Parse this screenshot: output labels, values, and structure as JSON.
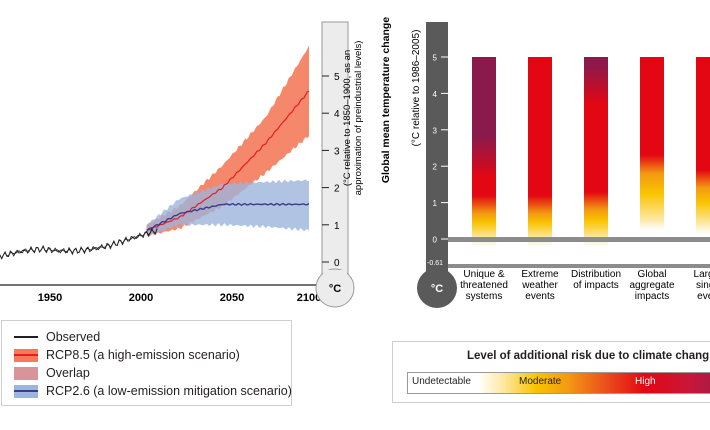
{
  "left_chart": {
    "ylabel_line1": "(°C relative to 1850–1900, as an",
    "ylabel_line2": "approximation of preindustrial levels)",
    "unit": "°C",
    "xticks": [
      "1950",
      "2000",
      "2050",
      "2100"
    ],
    "yticks": [
      "0",
      "1",
      "2",
      "3",
      "4",
      "5"
    ]
  },
  "legend": {
    "items": [
      {
        "label": "Observed",
        "color": "#231f20",
        "kind": "line"
      },
      {
        "label": "RCP8.5 (a high-emission scenario)",
        "color": "#f47a5a",
        "line": "#e31e24",
        "kind": "patch"
      },
      {
        "label": "Overlap",
        "color": "#d9949a",
        "kind": "patch"
      },
      {
        "label": "RCP2.6 (a low-emission mitigation scenario)",
        "color": "#9db4dc",
        "line": "#3b3b8c",
        "kind": "patch"
      }
    ]
  },
  "right_chart": {
    "ylabel_main": "Global mean temperature change",
    "ylabel_sub": "(°C relative to 1986–2005)",
    "unit": "°C",
    "yticks": [
      "0",
      "1",
      "2",
      "3",
      "4",
      "5"
    ],
    "ymin_label": "-0.61",
    "categories": [
      [
        "Unique &",
        "threatened",
        "systems"
      ],
      [
        "Extreme",
        "weather",
        "events"
      ],
      [
        "Distribution",
        "of impacts"
      ],
      [
        "Global",
        "aggregate",
        "impacts"
      ],
      [
        "Large-",
        "singu",
        "even"
      ]
    ]
  },
  "risk_scale": {
    "title": "Level of additional risk due to climate chang",
    "labels": [
      "Undetectable",
      "Moderate",
      "High"
    ]
  },
  "colors": {
    "rcp85_band": "#f47a5a",
    "rcp85_line": "#e31e24",
    "overlap": "#d9949a",
    "rcp26_band": "#9db4dc",
    "rcp26_line": "#3b3b8c",
    "thermometer": "#5a5a5a",
    "moderate": "#f9c400",
    "high": "#e30613",
    "very_high": "#8b1a4c"
  },
  "chart_data": [
    {
      "type": "line",
      "title": "",
      "xlabel": "",
      "ylabel": "(°C relative to 1850–1900, as an approximation of preindustrial levels)",
      "xlim": [
        1915,
        2100
      ],
      "ylim": [
        0,
        5.9
      ],
      "series": [
        {
          "name": "Observed",
          "x": [
            1915,
            1925,
            1935,
            1945,
            1955,
            1965,
            1975,
            1985,
            1995,
            2005,
            2012
          ],
          "y": [
            0.1,
            0.2,
            0.3,
            0.35,
            0.3,
            0.3,
            0.35,
            0.45,
            0.6,
            0.75,
            0.85
          ]
        },
        {
          "name": "RCP8.5 (a high-emission scenario)",
          "x": [
            2006,
            2025,
            2050,
            2075,
            2100
          ],
          "y": [
            0.85,
            1.2,
            2.0,
            3.2,
            4.6
          ],
          "lower": [
            0.7,
            0.9,
            1.5,
            2.4,
            3.4
          ],
          "upper": [
            1.0,
            1.5,
            2.6,
            3.9,
            5.8
          ]
        },
        {
          "name": "RCP2.6 (a low-emission mitigation scenario)",
          "x": [
            2006,
            2025,
            2050,
            2075,
            2100
          ],
          "y": [
            0.85,
            1.3,
            1.55,
            1.55,
            1.55
          ],
          "lower": [
            0.7,
            1.0,
            1.0,
            0.95,
            0.85
          ],
          "upper": [
            1.0,
            1.7,
            2.1,
            2.15,
            2.2
          ]
        }
      ]
    },
    {
      "type": "bar",
      "title": "",
      "xlabel": "",
      "ylabel": "Global mean temperature change (°C relative to 1986–2005)",
      "ylim": [
        -0.61,
        5
      ],
      "categories": [
        "Unique & threatened systems",
        "Extreme weather events",
        "Distribution of impacts",
        "Global aggregate impacts",
        "Large-scale singular events"
      ],
      "bar_range": [
        -0.2,
        5
      ],
      "risk_transitions": [
        {
          "undetectable_to_moderate": 0.0,
          "moderate_to_high": 0.9,
          "high_to_very_high": 2.0
        },
        {
          "undetectable_to_moderate": 0.0,
          "moderate_to_high": 0.9,
          "high_to_very_high": null
        },
        {
          "undetectable_to_moderate": 0.0,
          "moderate_to_high": 1.0,
          "high_to_very_high": 4.0
        },
        {
          "undetectable_to_moderate": 0.5,
          "moderate_to_high": 2.0,
          "high_to_very_high": null
        },
        {
          "undetectable_to_moderate": 0.4,
          "moderate_to_high": 1.6,
          "high_to_very_high": null
        }
      ]
    }
  ]
}
